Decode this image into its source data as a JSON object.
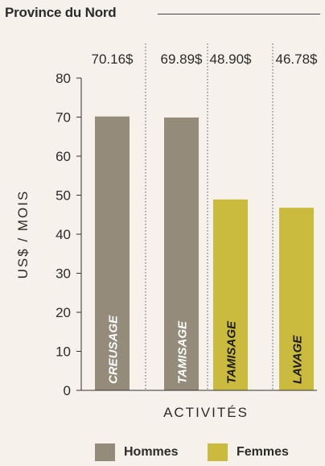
{
  "header": {
    "title": "Province du Nord"
  },
  "colors": {
    "hommes": "#958b7a",
    "femmes": "#cabb3e",
    "axis": "#333333",
    "text": "#2b2b2b"
  },
  "chart_data": {
    "type": "bar",
    "title": "Province du Nord",
    "xlabel": "ACTIVITÉS",
    "ylabel": "US$ / MOIS",
    "ylim": [
      0,
      80
    ],
    "yticks": [
      0,
      10,
      20,
      30,
      40,
      50,
      60,
      70,
      80
    ],
    "grid": false,
    "legend_position": "bottom",
    "categories": [
      "CREUSAGE",
      "TAMISAGE",
      "TAMISAGE",
      "LAVAGE"
    ],
    "values": [
      70.16,
      69.89,
      48.9,
      46.78
    ],
    "value_labels": [
      "70.16$",
      "69.89$",
      "48.90$",
      "46.78$"
    ],
    "groups": [
      "Hommes",
      "Hommes",
      "Femmes",
      "Femmes"
    ],
    "legend": [
      {
        "name": "Hommes",
        "color": "#958b7a"
      },
      {
        "name": "Femmes",
        "color": "#cabb3e"
      }
    ]
  }
}
